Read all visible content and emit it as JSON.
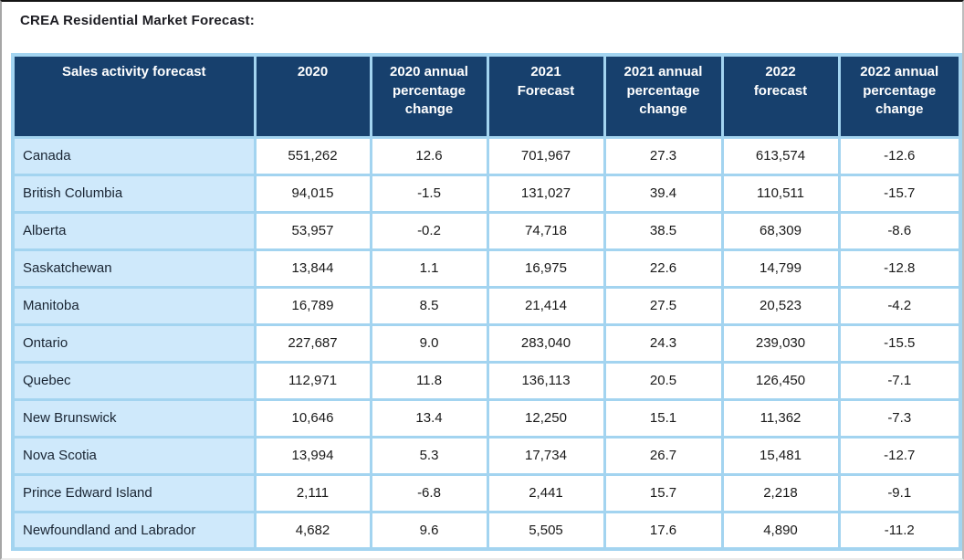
{
  "colors": {
    "header_bg": "#17406d",
    "header_text": "#ffffff",
    "row_label_bg": "#cfe9fb",
    "cell_bg": "#ffffff",
    "grid": "#a3d4f0",
    "body_text": "#1a1a1a"
  },
  "chart_data": {
    "type": "table",
    "title": "CREA Residential Market Forecast:",
    "columns": [
      "Sales activity forecast",
      "2020",
      "2020 annual\npercentage\nchange",
      "2021\nForecast",
      "2021 annual\npercentage\nchange",
      "2022\nforecast",
      "2022 annual\npercentage\nchange"
    ],
    "rows": [
      [
        "Canada",
        "551,262",
        "12.6",
        "701,967",
        "27.3",
        "613,574",
        "-12.6"
      ],
      [
        "British Columbia",
        "94,015",
        "-1.5",
        "131,027",
        "39.4",
        "110,511",
        "-15.7"
      ],
      [
        "Alberta",
        "53,957",
        "-0.2",
        "74,718",
        "38.5",
        "68,309",
        "-8.6"
      ],
      [
        "Saskatchewan",
        "13,844",
        "1.1",
        "16,975",
        "22.6",
        "14,799",
        "-12.8"
      ],
      [
        "Manitoba",
        "16,789",
        "8.5",
        "21,414",
        "27.5",
        "20,523",
        "-4.2"
      ],
      [
        "Ontario",
        "227,687",
        "9.0",
        "283,040",
        "24.3",
        "239,030",
        "-15.5"
      ],
      [
        "Quebec",
        "112,971",
        "11.8",
        "136,113",
        "20.5",
        "126,450",
        "-7.1"
      ],
      [
        "New Brunswick",
        "10,646",
        "13.4",
        "12,250",
        "15.1",
        "11,362",
        "-7.3"
      ],
      [
        "Nova Scotia",
        "13,994",
        "5.3",
        "17,734",
        "26.7",
        "15,481",
        "-12.7"
      ],
      [
        "Prince Edward Island",
        "2,111",
        "-6.8",
        "2,441",
        "15.7",
        "2,218",
        "-9.1"
      ],
      [
        "Newfoundland and Labrador",
        "4,682",
        "9.6",
        "5,505",
        "17.6",
        "4,890",
        "-11.2"
      ]
    ]
  }
}
